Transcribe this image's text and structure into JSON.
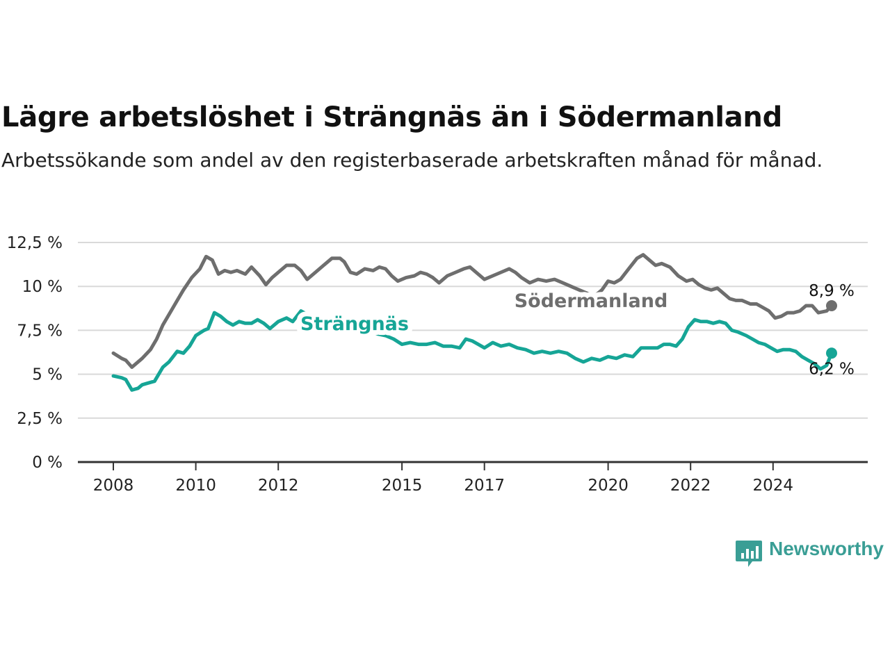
{
  "header": {
    "title": "Lägre arbetslöshet i Strängnäs än i Södermanland",
    "subtitle": "Arbetssökande som andel av den registerbaserade arbetskraften månad för månad."
  },
  "logo": {
    "text": "Newsworthy",
    "icon": "newsworthy-bar-chart-icon"
  },
  "chart_data": {
    "type": "line",
    "title": "Lägre arbetslöshet i Strängnäs än i Södermanland",
    "subtitle": "Arbetssökande som andel av den registerbaserade arbetskraften månad för månad.",
    "xlabel": "",
    "ylabel": "",
    "xlim": [
      2008.0,
      2025.42
    ],
    "ylim": [
      0,
      12.5
    ],
    "y_ticks": [
      0,
      2.5,
      5,
      7.5,
      10,
      12.5
    ],
    "y_tick_labels": [
      "0 %",
      "2,5 %",
      "5 %",
      "7,5 %",
      "10 %",
      "12,5 %"
    ],
    "x_ticks": [
      2008,
      2010,
      2012,
      2015,
      2017,
      2020,
      2022,
      2024
    ],
    "x_tick_labels": [
      "2008",
      "2010",
      "2012",
      "2015",
      "2017",
      "2020",
      "2022",
      "2024"
    ],
    "grid": true,
    "legend": "direct labels on lines",
    "colors": {
      "Södermanland": "#6e6e6e",
      "Strängnäs": "#16a596"
    },
    "series": [
      {
        "name": "Södermanland",
        "color": "#6e6e6e",
        "end_label": "8,9 %",
        "points": [
          [
            2008.0,
            6.2
          ],
          [
            2008.2,
            5.9
          ],
          [
            2008.3,
            5.8
          ],
          [
            2008.45,
            5.4
          ],
          [
            2008.7,
            5.9
          ],
          [
            2008.9,
            6.4
          ],
          [
            2009.05,
            7.0
          ],
          [
            2009.2,
            7.8
          ],
          [
            2009.4,
            8.6
          ],
          [
            2009.55,
            9.2
          ],
          [
            2009.7,
            9.8
          ],
          [
            2009.9,
            10.5
          ],
          [
            2010.1,
            11.0
          ],
          [
            2010.25,
            11.7
          ],
          [
            2010.4,
            11.5
          ],
          [
            2010.55,
            10.7
          ],
          [
            2010.7,
            10.9
          ],
          [
            2010.85,
            10.8
          ],
          [
            2011.0,
            10.9
          ],
          [
            2011.2,
            10.7
          ],
          [
            2011.35,
            11.1
          ],
          [
            2011.55,
            10.6
          ],
          [
            2011.7,
            10.1
          ],
          [
            2011.85,
            10.5
          ],
          [
            2012.0,
            10.8
          ],
          [
            2012.2,
            11.2
          ],
          [
            2012.4,
            11.2
          ],
          [
            2012.55,
            10.9
          ],
          [
            2012.7,
            10.4
          ],
          [
            2012.9,
            10.8
          ],
          [
            2013.1,
            11.2
          ],
          [
            2013.3,
            11.6
          ],
          [
            2013.5,
            11.6
          ],
          [
            2013.6,
            11.4
          ],
          [
            2013.75,
            10.8
          ],
          [
            2013.9,
            10.7
          ],
          [
            2014.1,
            11.0
          ],
          [
            2014.3,
            10.9
          ],
          [
            2014.45,
            11.1
          ],
          [
            2014.6,
            11.0
          ],
          [
            2014.75,
            10.6
          ],
          [
            2014.9,
            10.3
          ],
          [
            2015.1,
            10.5
          ],
          [
            2015.3,
            10.6
          ],
          [
            2015.45,
            10.8
          ],
          [
            2015.6,
            10.7
          ],
          [
            2015.75,
            10.5
          ],
          [
            2015.9,
            10.2
          ],
          [
            2016.1,
            10.6
          ],
          [
            2016.3,
            10.8
          ],
          [
            2016.5,
            11.0
          ],
          [
            2016.65,
            11.1
          ],
          [
            2016.8,
            10.8
          ],
          [
            2017.0,
            10.4
          ],
          [
            2017.2,
            10.6
          ],
          [
            2017.4,
            10.8
          ],
          [
            2017.6,
            11.0
          ],
          [
            2017.75,
            10.8
          ],
          [
            2017.9,
            10.5
          ],
          [
            2018.1,
            10.2
          ],
          [
            2018.3,
            10.4
          ],
          [
            2018.5,
            10.3
          ],
          [
            2018.7,
            10.4
          ],
          [
            2018.9,
            10.2
          ],
          [
            2019.1,
            10.0
          ],
          [
            2019.3,
            9.8
          ],
          [
            2019.5,
            9.6
          ],
          [
            2019.7,
            9.5
          ],
          [
            2019.85,
            9.8
          ],
          [
            2020.0,
            10.3
          ],
          [
            2020.15,
            10.2
          ],
          [
            2020.3,
            10.4
          ],
          [
            2020.5,
            11.0
          ],
          [
            2020.7,
            11.6
          ],
          [
            2020.85,
            11.8
          ],
          [
            2021.0,
            11.5
          ],
          [
            2021.15,
            11.2
          ],
          [
            2021.3,
            11.3
          ],
          [
            2021.5,
            11.1
          ],
          [
            2021.7,
            10.6
          ],
          [
            2021.9,
            10.3
          ],
          [
            2022.05,
            10.4
          ],
          [
            2022.2,
            10.1
          ],
          [
            2022.35,
            9.9
          ],
          [
            2022.5,
            9.8
          ],
          [
            2022.65,
            9.9
          ],
          [
            2022.8,
            9.6
          ],
          [
            2022.95,
            9.3
          ],
          [
            2023.1,
            9.2
          ],
          [
            2023.25,
            9.2
          ],
          [
            2023.45,
            9.0
          ],
          [
            2023.6,
            9.0
          ],
          [
            2023.75,
            8.8
          ],
          [
            2023.9,
            8.6
          ],
          [
            2024.05,
            8.2
          ],
          [
            2024.2,
            8.3
          ],
          [
            2024.35,
            8.5
          ],
          [
            2024.5,
            8.5
          ],
          [
            2024.65,
            8.6
          ],
          [
            2024.8,
            8.9
          ],
          [
            2024.95,
            8.9
          ],
          [
            2025.1,
            8.5
          ],
          [
            2025.3,
            8.6
          ],
          [
            2025.42,
            8.9
          ]
        ]
      },
      {
        "name": "Strängnäs",
        "color": "#16a596",
        "end_label": "6,2 %",
        "points": [
          [
            2008.0,
            4.9
          ],
          [
            2008.2,
            4.8
          ],
          [
            2008.3,
            4.7
          ],
          [
            2008.45,
            4.1
          ],
          [
            2008.6,
            4.2
          ],
          [
            2008.7,
            4.4
          ],
          [
            2008.85,
            4.5
          ],
          [
            2009.0,
            4.6
          ],
          [
            2009.2,
            5.4
          ],
          [
            2009.35,
            5.7
          ],
          [
            2009.55,
            6.3
          ],
          [
            2009.7,
            6.2
          ],
          [
            2009.85,
            6.6
          ],
          [
            2010.0,
            7.2
          ],
          [
            2010.2,
            7.5
          ],
          [
            2010.3,
            7.6
          ],
          [
            2010.45,
            8.5
          ],
          [
            2010.6,
            8.3
          ],
          [
            2010.75,
            8.0
          ],
          [
            2010.9,
            7.8
          ],
          [
            2011.05,
            8.0
          ],
          [
            2011.2,
            7.9
          ],
          [
            2011.35,
            7.9
          ],
          [
            2011.5,
            8.1
          ],
          [
            2011.65,
            7.9
          ],
          [
            2011.8,
            7.6
          ],
          [
            2012.0,
            8.0
          ],
          [
            2012.2,
            8.2
          ],
          [
            2012.35,
            8.0
          ],
          [
            2012.55,
            8.6
          ],
          [
            2012.7,
            8.4
          ],
          [
            2012.85,
            8.3
          ],
          [
            2013.0,
            7.5
          ],
          [
            2013.2,
            7.8
          ],
          [
            2013.4,
            7.6
          ],
          [
            2013.6,
            7.8
          ],
          [
            2013.8,
            7.7
          ],
          [
            2014.0,
            7.6
          ],
          [
            2014.2,
            7.5
          ],
          [
            2014.4,
            7.3
          ],
          [
            2014.6,
            7.2
          ],
          [
            2014.8,
            7.0
          ],
          [
            2015.0,
            6.7
          ],
          [
            2015.2,
            6.8
          ],
          [
            2015.4,
            6.7
          ],
          [
            2015.6,
            6.7
          ],
          [
            2015.8,
            6.8
          ],
          [
            2016.0,
            6.6
          ],
          [
            2016.2,
            6.6
          ],
          [
            2016.4,
            6.5
          ],
          [
            2016.55,
            7.0
          ],
          [
            2016.7,
            6.9
          ],
          [
            2016.85,
            6.7
          ],
          [
            2017.0,
            6.5
          ],
          [
            2017.2,
            6.8
          ],
          [
            2017.4,
            6.6
          ],
          [
            2017.6,
            6.7
          ],
          [
            2017.8,
            6.5
          ],
          [
            2018.0,
            6.4
          ],
          [
            2018.2,
            6.2
          ],
          [
            2018.4,
            6.3
          ],
          [
            2018.6,
            6.2
          ],
          [
            2018.8,
            6.3
          ],
          [
            2019.0,
            6.2
          ],
          [
            2019.2,
            5.9
          ],
          [
            2019.4,
            5.7
          ],
          [
            2019.6,
            5.9
          ],
          [
            2019.8,
            5.8
          ],
          [
            2020.0,
            6.0
          ],
          [
            2020.2,
            5.9
          ],
          [
            2020.4,
            6.1
          ],
          [
            2020.6,
            6.0
          ],
          [
            2020.8,
            6.5
          ],
          [
            2021.0,
            6.5
          ],
          [
            2021.2,
            6.5
          ],
          [
            2021.35,
            6.7
          ],
          [
            2021.5,
            6.7
          ],
          [
            2021.65,
            6.6
          ],
          [
            2021.8,
            7.0
          ],
          [
            2021.95,
            7.7
          ],
          [
            2022.1,
            8.1
          ],
          [
            2022.25,
            8.0
          ],
          [
            2022.4,
            8.0
          ],
          [
            2022.55,
            7.9
          ],
          [
            2022.7,
            8.0
          ],
          [
            2022.85,
            7.9
          ],
          [
            2023.0,
            7.5
          ],
          [
            2023.15,
            7.4
          ],
          [
            2023.35,
            7.2
          ],
          [
            2023.5,
            7.0
          ],
          [
            2023.65,
            6.8
          ],
          [
            2023.8,
            6.7
          ],
          [
            2023.95,
            6.5
          ],
          [
            2024.1,
            6.3
          ],
          [
            2024.25,
            6.4
          ],
          [
            2024.4,
            6.4
          ],
          [
            2024.55,
            6.3
          ],
          [
            2024.7,
            6.0
          ],
          [
            2024.85,
            5.8
          ],
          [
            2025.0,
            5.6
          ],
          [
            2025.15,
            5.3
          ],
          [
            2025.3,
            5.5
          ],
          [
            2025.42,
            6.2
          ]
        ]
      }
    ]
  }
}
